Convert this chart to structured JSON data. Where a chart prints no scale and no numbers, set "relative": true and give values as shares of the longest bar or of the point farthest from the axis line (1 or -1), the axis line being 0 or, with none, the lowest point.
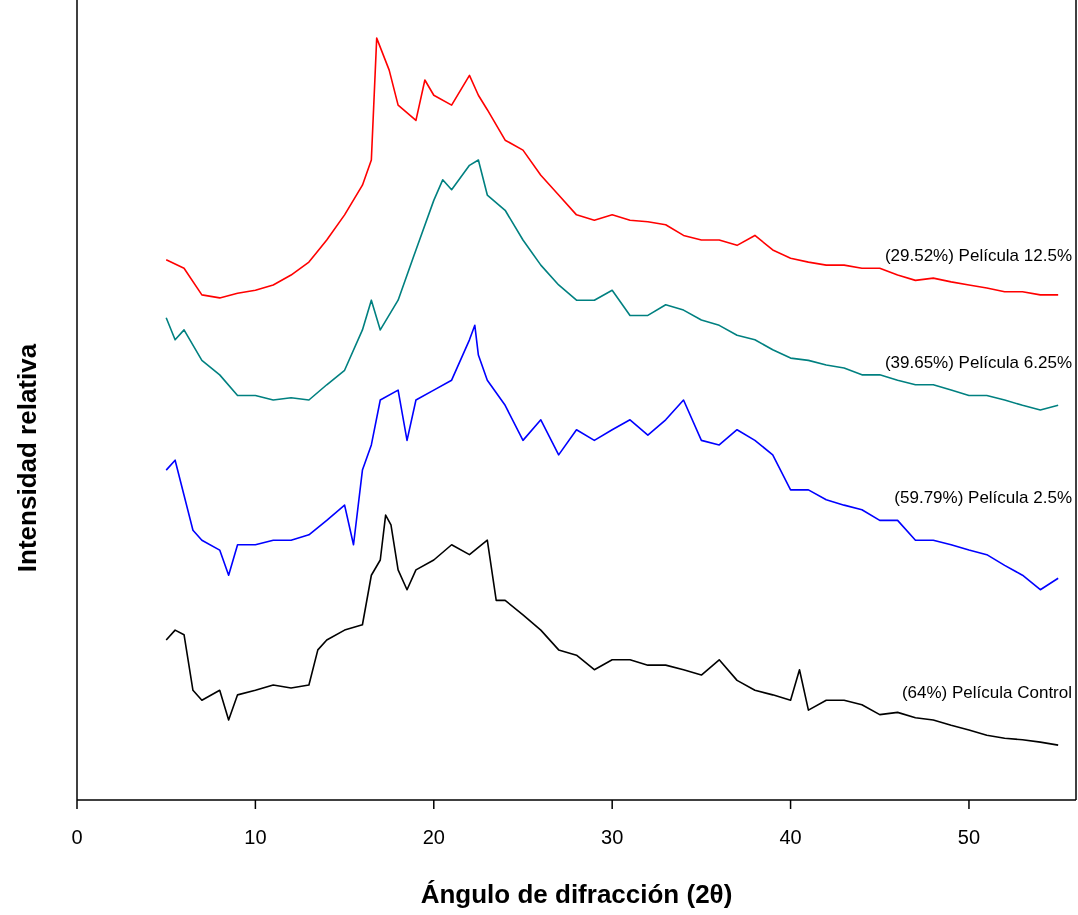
{
  "chart_data": {
    "type": "line",
    "xlabel": "Ángulo de difracción (2θ)",
    "ylabel": "Intensidad relativa",
    "relative": true,
    "xlim": [
      0,
      56
    ],
    "xticks": [
      0,
      10,
      20,
      30,
      40,
      50
    ],
    "series": [
      {
        "name": "(29.52%) Película 12.5%",
        "color": "#ff0000",
        "x": [
          5,
          6,
          7,
          8,
          9,
          10,
          11,
          12,
          13,
          14,
          15,
          16,
          16.5,
          16.8,
          17.5,
          18,
          19,
          19.5,
          20,
          21,
          22,
          22.5,
          23,
          24,
          25,
          26,
          27,
          28,
          29,
          30,
          31,
          32,
          33,
          34,
          35,
          36,
          37,
          38,
          39,
          40,
          41,
          42,
          43,
          44,
          45,
          46,
          47,
          48,
          49,
          50,
          51,
          52,
          53,
          54,
          55
        ],
        "values": [
          0.709,
          0.698,
          0.663,
          0.659,
          0.665,
          0.669,
          0.676,
          0.689,
          0.706,
          0.735,
          0.768,
          0.807,
          0.84,
          1.0,
          0.958,
          0.912,
          0.892,
          0.945,
          0.925,
          0.912,
          0.951,
          0.925,
          0.906,
          0.866,
          0.853,
          0.82,
          0.794,
          0.768,
          0.761,
          0.768,
          0.761,
          0.759,
          0.755,
          0.741,
          0.735,
          0.735,
          0.728,
          0.741,
          0.722,
          0.711,
          0.706,
          0.702,
          0.702,
          0.698,
          0.698,
          0.689,
          0.682,
          0.685,
          0.68,
          0.676,
          0.672,
          0.667,
          0.667,
          0.663,
          0.663
        ]
      },
      {
        "name": "(39.65%) Película 6.25%",
        "color": "#008080",
        "x": [
          5,
          5.5,
          6,
          7,
          8,
          9,
          10,
          11,
          12,
          13,
          14,
          15,
          16,
          16.5,
          17,
          18,
          19,
          20,
          20.5,
          21,
          22,
          22.5,
          23,
          24,
          25,
          26,
          27,
          28,
          29,
          30,
          31,
          32,
          33,
          34,
          35,
          36,
          37,
          38,
          39,
          40,
          41,
          42,
          43,
          44,
          45,
          46,
          47,
          48,
          49,
          50,
          51,
          52,
          53,
          54,
          55
        ],
        "values": [
          0.633,
          0.604,
          0.617,
          0.577,
          0.558,
          0.531,
          0.531,
          0.525,
          0.528,
          0.525,
          0.545,
          0.564,
          0.617,
          0.656,
          0.617,
          0.656,
          0.722,
          0.787,
          0.814,
          0.801,
          0.833,
          0.84,
          0.794,
          0.774,
          0.735,
          0.702,
          0.676,
          0.656,
          0.656,
          0.669,
          0.636,
          0.636,
          0.65,
          0.643,
          0.63,
          0.623,
          0.61,
          0.604,
          0.591,
          0.58,
          0.577,
          0.571,
          0.567,
          0.558,
          0.558,
          0.551,
          0.545,
          0.545,
          0.538,
          0.531,
          0.531,
          0.525,
          0.518,
          0.512,
          0.518
        ]
      },
      {
        "name": "(59.79%) Película 2.5%",
        "color": "#0000ff",
        "x": [
          5,
          5.5,
          6,
          6.5,
          7,
          8,
          8.5,
          9,
          10,
          11,
          12,
          13,
          14,
          15,
          15.5,
          16,
          16.5,
          17,
          18,
          18.5,
          19,
          20,
          21,
          22,
          22.3,
          22.5,
          23,
          24,
          25,
          26,
          27,
          28,
          29,
          30,
          31,
          32,
          33,
          34,
          35,
          36,
          37,
          38,
          39,
          40,
          41,
          42,
          43,
          44,
          45,
          46,
          47,
          48,
          49,
          50,
          51,
          52,
          53,
          54,
          55
        ],
        "values": [
          0.433,
          0.446,
          0.4,
          0.354,
          0.341,
          0.328,
          0.295,
          0.335,
          0.335,
          0.341,
          0.341,
          0.348,
          0.367,
          0.387,
          0.335,
          0.433,
          0.466,
          0.525,
          0.538,
          0.472,
          0.525,
          0.538,
          0.551,
          0.604,
          0.623,
          0.584,
          0.551,
          0.518,
          0.472,
          0.499,
          0.453,
          0.486,
          0.472,
          0.486,
          0.499,
          0.479,
          0.499,
          0.525,
          0.472,
          0.466,
          0.486,
          0.472,
          0.453,
          0.407,
          0.407,
          0.394,
          0.387,
          0.381,
          0.367,
          0.367,
          0.341,
          0.341,
          0.335,
          0.328,
          0.322,
          0.308,
          0.295,
          0.276,
          0.291
        ]
      },
      {
        "name": "(64%) Película Control",
        "color": "#000000",
        "x": [
          5,
          5.5,
          6,
          6.5,
          7,
          8,
          8.5,
          9,
          10,
          11,
          12,
          13,
          13.5,
          14,
          15,
          16,
          16.5,
          17,
          17.3,
          17.6,
          18,
          18.5,
          19,
          20,
          21,
          22,
          23,
          23.5,
          24,
          25,
          26,
          27,
          28,
          29,
          30,
          31,
          32,
          33,
          34,
          35,
          36,
          37,
          38,
          39,
          40,
          40.5,
          41,
          42,
          43,
          44,
          45,
          46,
          47,
          48,
          49,
          50,
          51,
          52,
          53,
          54,
          55
        ],
        "values": [
          0.21,
          0.223,
          0.217,
          0.144,
          0.131,
          0.144,
          0.105,
          0.138,
          0.144,
          0.151,
          0.147,
          0.151,
          0.197,
          0.21,
          0.223,
          0.23,
          0.295,
          0.315,
          0.374,
          0.361,
          0.302,
          0.276,
          0.302,
          0.315,
          0.335,
          0.322,
          0.341,
          0.262,
          0.262,
          0.243,
          0.223,
          0.197,
          0.19,
          0.171,
          0.184,
          0.184,
          0.177,
          0.177,
          0.171,
          0.164,
          0.184,
          0.157,
          0.144,
          0.138,
          0.131,
          0.171,
          0.118,
          0.131,
          0.131,
          0.125,
          0.112,
          0.115,
          0.108,
          0.105,
          0.098,
          0.092,
          0.085,
          0.081,
          0.079,
          0.076,
          0.072
        ]
      }
    ]
  }
}
